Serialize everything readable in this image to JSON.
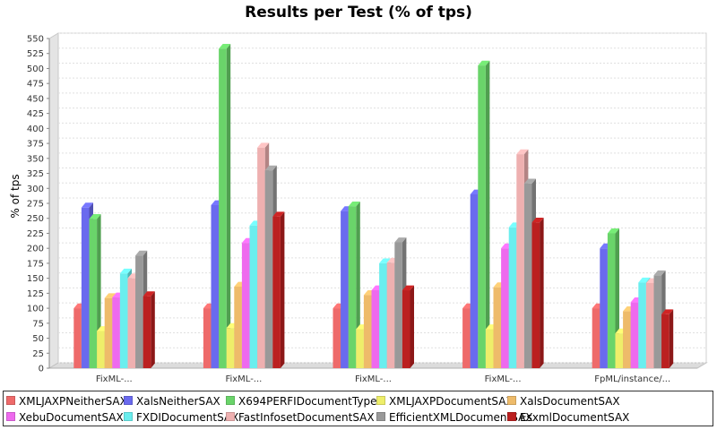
{
  "chart_data": {
    "type": "bar",
    "title": "Results per Test (% of tps)",
    "xlabel": "",
    "ylabel": "% of tps",
    "ylim": [
      0,
      550
    ],
    "yticks": [
      0,
      25,
      50,
      75,
      100,
      125,
      150,
      175,
      200,
      225,
      250,
      275,
      300,
      325,
      350,
      375,
      400,
      425,
      450,
      475,
      500,
      525,
      550
    ],
    "grid": true,
    "legend_position": "bottom",
    "categories": [
      "FixML-...",
      "FixML-...",
      "FixML-...",
      "FixML-...",
      "FpML/instance/..."
    ],
    "series": [
      {
        "name": "XMLJAXPNeitherSAX",
        "color": "#ee6a6a",
        "values": [
          100,
          100,
          100,
          100,
          100
        ]
      },
      {
        "name": "XalsNeitherSAX",
        "color": "#6a6aee",
        "values": [
          268,
          272,
          262,
          290,
          200
        ]
      },
      {
        "name": "X694PERFIDocumentTyped",
        "color": "#6ad46a",
        "values": [
          249,
          533,
          270,
          505,
          225
        ]
      },
      {
        "name": "XMLJAXPDocumentSAX",
        "color": "#eeee6a",
        "values": [
          62,
          67,
          65,
          65,
          58
        ]
      },
      {
        "name": "XalsDocumentSAX",
        "color": "#eebb6a",
        "values": [
          117,
          136,
          122,
          135,
          95
        ]
      },
      {
        "name": "XebuDocumentSAX",
        "color": "#ee6aee",
        "values": [
          118,
          209,
          130,
          200,
          110
        ]
      },
      {
        "name": "FXDIDocumentSAX",
        "color": "#6aeeee",
        "values": [
          158,
          238,
          175,
          235,
          143
        ]
      },
      {
        "name": "FastInfosetDocumentSAX",
        "color": "#eeb0b0",
        "values": [
          150,
          368,
          176,
          357,
          142
        ]
      },
      {
        "name": "EfficientXMLDocumentSAX",
        "color": "#999999",
        "values": [
          188,
          330,
          210,
          308,
          155
        ]
      },
      {
        "name": "EsxmlDocumentSAX",
        "color": "#bb2020",
        "values": [
          120,
          253,
          130,
          243,
          90
        ]
      }
    ]
  }
}
